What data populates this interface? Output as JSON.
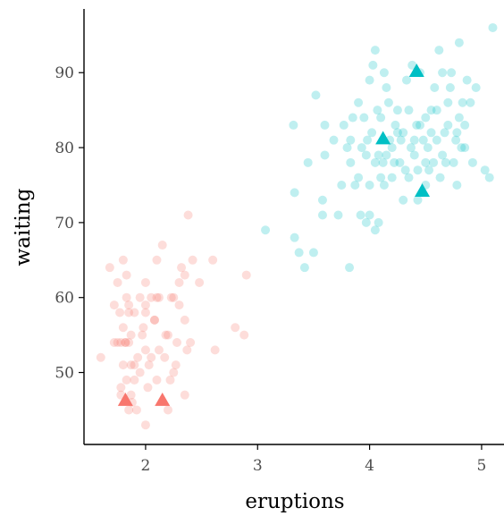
{
  "chart_data": {
    "type": "scatter",
    "title": "",
    "xlabel": "eruptions",
    "ylabel": "waiting",
    "xlim": [
      1.45,
      5.2
    ],
    "ylim": [
      40.4,
      98.5
    ],
    "x_ticks": [
      2,
      3,
      4,
      5
    ],
    "y_ticks": [
      50,
      60,
      70,
      80,
      90
    ],
    "grid": false,
    "legend": "none",
    "series": [
      {
        "color": "#F8766D",
        "shape": "circle",
        "opacity": 0.25,
        "points": [
          [
            1.6,
            52
          ],
          [
            1.68,
            64
          ],
          [
            1.72,
            59
          ],
          [
            1.75,
            54
          ],
          [
            1.75,
            62
          ],
          [
            1.77,
            58
          ],
          [
            1.78,
            47
          ],
          [
            1.78,
            48
          ],
          [
            1.78,
            54
          ],
          [
            1.8,
            51
          ],
          [
            1.8,
            56
          ],
          [
            1.8,
            65
          ],
          [
            1.82,
            54
          ],
          [
            1.83,
            49
          ],
          [
            1.83,
            60
          ],
          [
            1.83,
            63
          ],
          [
            1.85,
            45
          ],
          [
            1.85,
            54
          ],
          [
            1.85,
            58
          ],
          [
            1.85,
            59
          ],
          [
            1.87,
            47
          ],
          [
            1.87,
            51
          ],
          [
            1.87,
            55
          ],
          [
            1.88,
            46
          ],
          [
            1.9,
            51
          ],
          [
            1.9,
            49
          ],
          [
            1.92,
            45
          ],
          [
            1.93,
            52
          ],
          [
            1.95,
            50
          ],
          [
            1.97,
            55
          ],
          [
            1.98,
            56
          ],
          [
            2.0,
            58
          ],
          [
            2.0,
            59
          ],
          [
            2.0,
            43
          ],
          [
            2.0,
            62
          ],
          [
            2.02,
            48
          ],
          [
            2.03,
            51
          ],
          [
            2.05,
            52
          ],
          [
            2.08,
            57
          ],
          [
            2.1,
            65
          ],
          [
            2.1,
            49
          ],
          [
            2.12,
            53
          ],
          [
            2.12,
            60
          ],
          [
            2.15,
            67
          ],
          [
            2.17,
            52
          ],
          [
            2.2,
            45
          ],
          [
            2.2,
            55
          ],
          [
            2.22,
            49
          ],
          [
            2.23,
            60
          ],
          [
            2.25,
            60
          ],
          [
            2.27,
            51
          ],
          [
            2.28,
            54
          ],
          [
            2.3,
            62
          ],
          [
            2.3,
            59
          ],
          [
            2.32,
            64
          ],
          [
            2.35,
            63
          ],
          [
            2.35,
            47
          ],
          [
            2.37,
            53
          ],
          [
            2.38,
            71
          ],
          [
            2.4,
            54
          ],
          [
            2.42,
            65
          ],
          [
            2.48,
            62
          ],
          [
            2.6,
            65
          ],
          [
            2.62,
            53
          ],
          [
            2.8,
            56
          ],
          [
            2.88,
            55
          ],
          [
            2.9,
            63
          ],
          [
            1.95,
            60
          ],
          [
            2.05,
            60
          ],
          [
            2.18,
            55
          ],
          [
            2.25,
            50
          ],
          [
            1.72,
            54
          ],
          [
            1.82,
            54
          ],
          [
            2.1,
            60
          ],
          [
            2.35,
            57
          ],
          [
            1.9,
            58
          ],
          [
            2.0,
            53
          ],
          [
            2.08,
            57
          ]
        ]
      },
      {
        "color": "#00BFC4",
        "shape": "circle",
        "opacity": 0.25,
        "points": [
          [
            3.07,
            69
          ],
          [
            3.32,
            83
          ],
          [
            3.33,
            74
          ],
          [
            3.33,
            68
          ],
          [
            3.37,
            66
          ],
          [
            3.42,
            64
          ],
          [
            3.45,
            78
          ],
          [
            3.5,
            66
          ],
          [
            3.52,
            87
          ],
          [
            3.58,
            71
          ],
          [
            3.58,
            73
          ],
          [
            3.6,
            79
          ],
          [
            3.6,
            83
          ],
          [
            3.68,
            81
          ],
          [
            3.72,
            71
          ],
          [
            3.75,
            75
          ],
          [
            3.77,
            83
          ],
          [
            3.8,
            80
          ],
          [
            3.82,
            64
          ],
          [
            3.83,
            78
          ],
          [
            3.83,
            81
          ],
          [
            3.85,
            84
          ],
          [
            3.87,
            75
          ],
          [
            3.9,
            76
          ],
          [
            3.92,
            71
          ],
          [
            3.93,
            80
          ],
          [
            3.95,
            84
          ],
          [
            3.97,
            70
          ],
          [
            3.97,
            79
          ],
          [
            4.0,
            71
          ],
          [
            4.0,
            75
          ],
          [
            4.02,
            82
          ],
          [
            4.03,
            91
          ],
          [
            4.05,
            69
          ],
          [
            4.05,
            78
          ],
          [
            4.07,
            85
          ],
          [
            4.08,
            70
          ],
          [
            4.1,
            76
          ],
          [
            4.1,
            84
          ],
          [
            4.12,
            78
          ],
          [
            4.13,
            75
          ],
          [
            4.15,
            88
          ],
          [
            4.15,
            79
          ],
          [
            4.17,
            86
          ],
          [
            4.18,
            81
          ],
          [
            4.2,
            76
          ],
          [
            4.22,
            78
          ],
          [
            4.23,
            83
          ],
          [
            4.25,
            82
          ],
          [
            4.27,
            78
          ],
          [
            4.28,
            81
          ],
          [
            4.3,
            73
          ],
          [
            4.3,
            82
          ],
          [
            4.32,
            77
          ],
          [
            4.33,
            89
          ],
          [
            4.35,
            85
          ],
          [
            4.37,
            80
          ],
          [
            4.38,
            91
          ],
          [
            4.4,
            81
          ],
          [
            4.42,
            83
          ],
          [
            4.43,
            77
          ],
          [
            4.45,
            83
          ],
          [
            4.45,
            90
          ],
          [
            4.47,
            74
          ],
          [
            4.48,
            81
          ],
          [
            4.5,
            78
          ],
          [
            4.5,
            84
          ],
          [
            4.52,
            80
          ],
          [
            4.53,
            77
          ],
          [
            4.55,
            85
          ],
          [
            4.57,
            78
          ],
          [
            4.58,
            88
          ],
          [
            4.6,
            85
          ],
          [
            4.6,
            81
          ],
          [
            4.62,
            93
          ],
          [
            4.63,
            76
          ],
          [
            4.65,
            90
          ],
          [
            4.67,
            82
          ],
          [
            4.68,
            78
          ],
          [
            4.7,
            83
          ],
          [
            4.72,
            88
          ],
          [
            4.73,
            90
          ],
          [
            4.75,
            78
          ],
          [
            4.77,
            81
          ],
          [
            4.78,
            75
          ],
          [
            4.8,
            94
          ],
          [
            4.8,
            84
          ],
          [
            4.82,
            80
          ],
          [
            4.83,
            86
          ],
          [
            4.85,
            83
          ],
          [
            4.87,
            89
          ],
          [
            4.9,
            86
          ],
          [
            4.92,
            78
          ],
          [
            4.95,
            88
          ],
          [
            5.03,
            77
          ],
          [
            5.07,
            76
          ],
          [
            5.1,
            96
          ],
          [
            4.05,
            93
          ],
          [
            4.13,
            90
          ],
          [
            4.25,
            85
          ],
          [
            4.35,
            76
          ],
          [
            4.43,
            73
          ],
          [
            3.9,
            86
          ],
          [
            4.0,
            89
          ],
          [
            4.55,
            82
          ],
          [
            4.65,
            79
          ],
          [
            4.7,
            86
          ],
          [
            4.78,
            82
          ],
          [
            3.98,
            81
          ],
          [
            4.08,
            79
          ],
          [
            4.2,
            80
          ],
          [
            4.4,
            79
          ],
          [
            4.85,
            80
          ],
          [
            4.5,
            75
          ]
        ]
      },
      {
        "color": "#F8766D",
        "shape": "triangle",
        "opacity": 1,
        "points": [
          [
            1.82,
            46.3
          ],
          [
            2.15,
            46.3
          ]
        ]
      },
      {
        "color": "#00BFC4",
        "shape": "triangle",
        "opacity": 1,
        "points": [
          [
            4.42,
            90.2
          ],
          [
            4.12,
            81.2
          ],
          [
            4.47,
            74.2
          ]
        ]
      }
    ]
  }
}
